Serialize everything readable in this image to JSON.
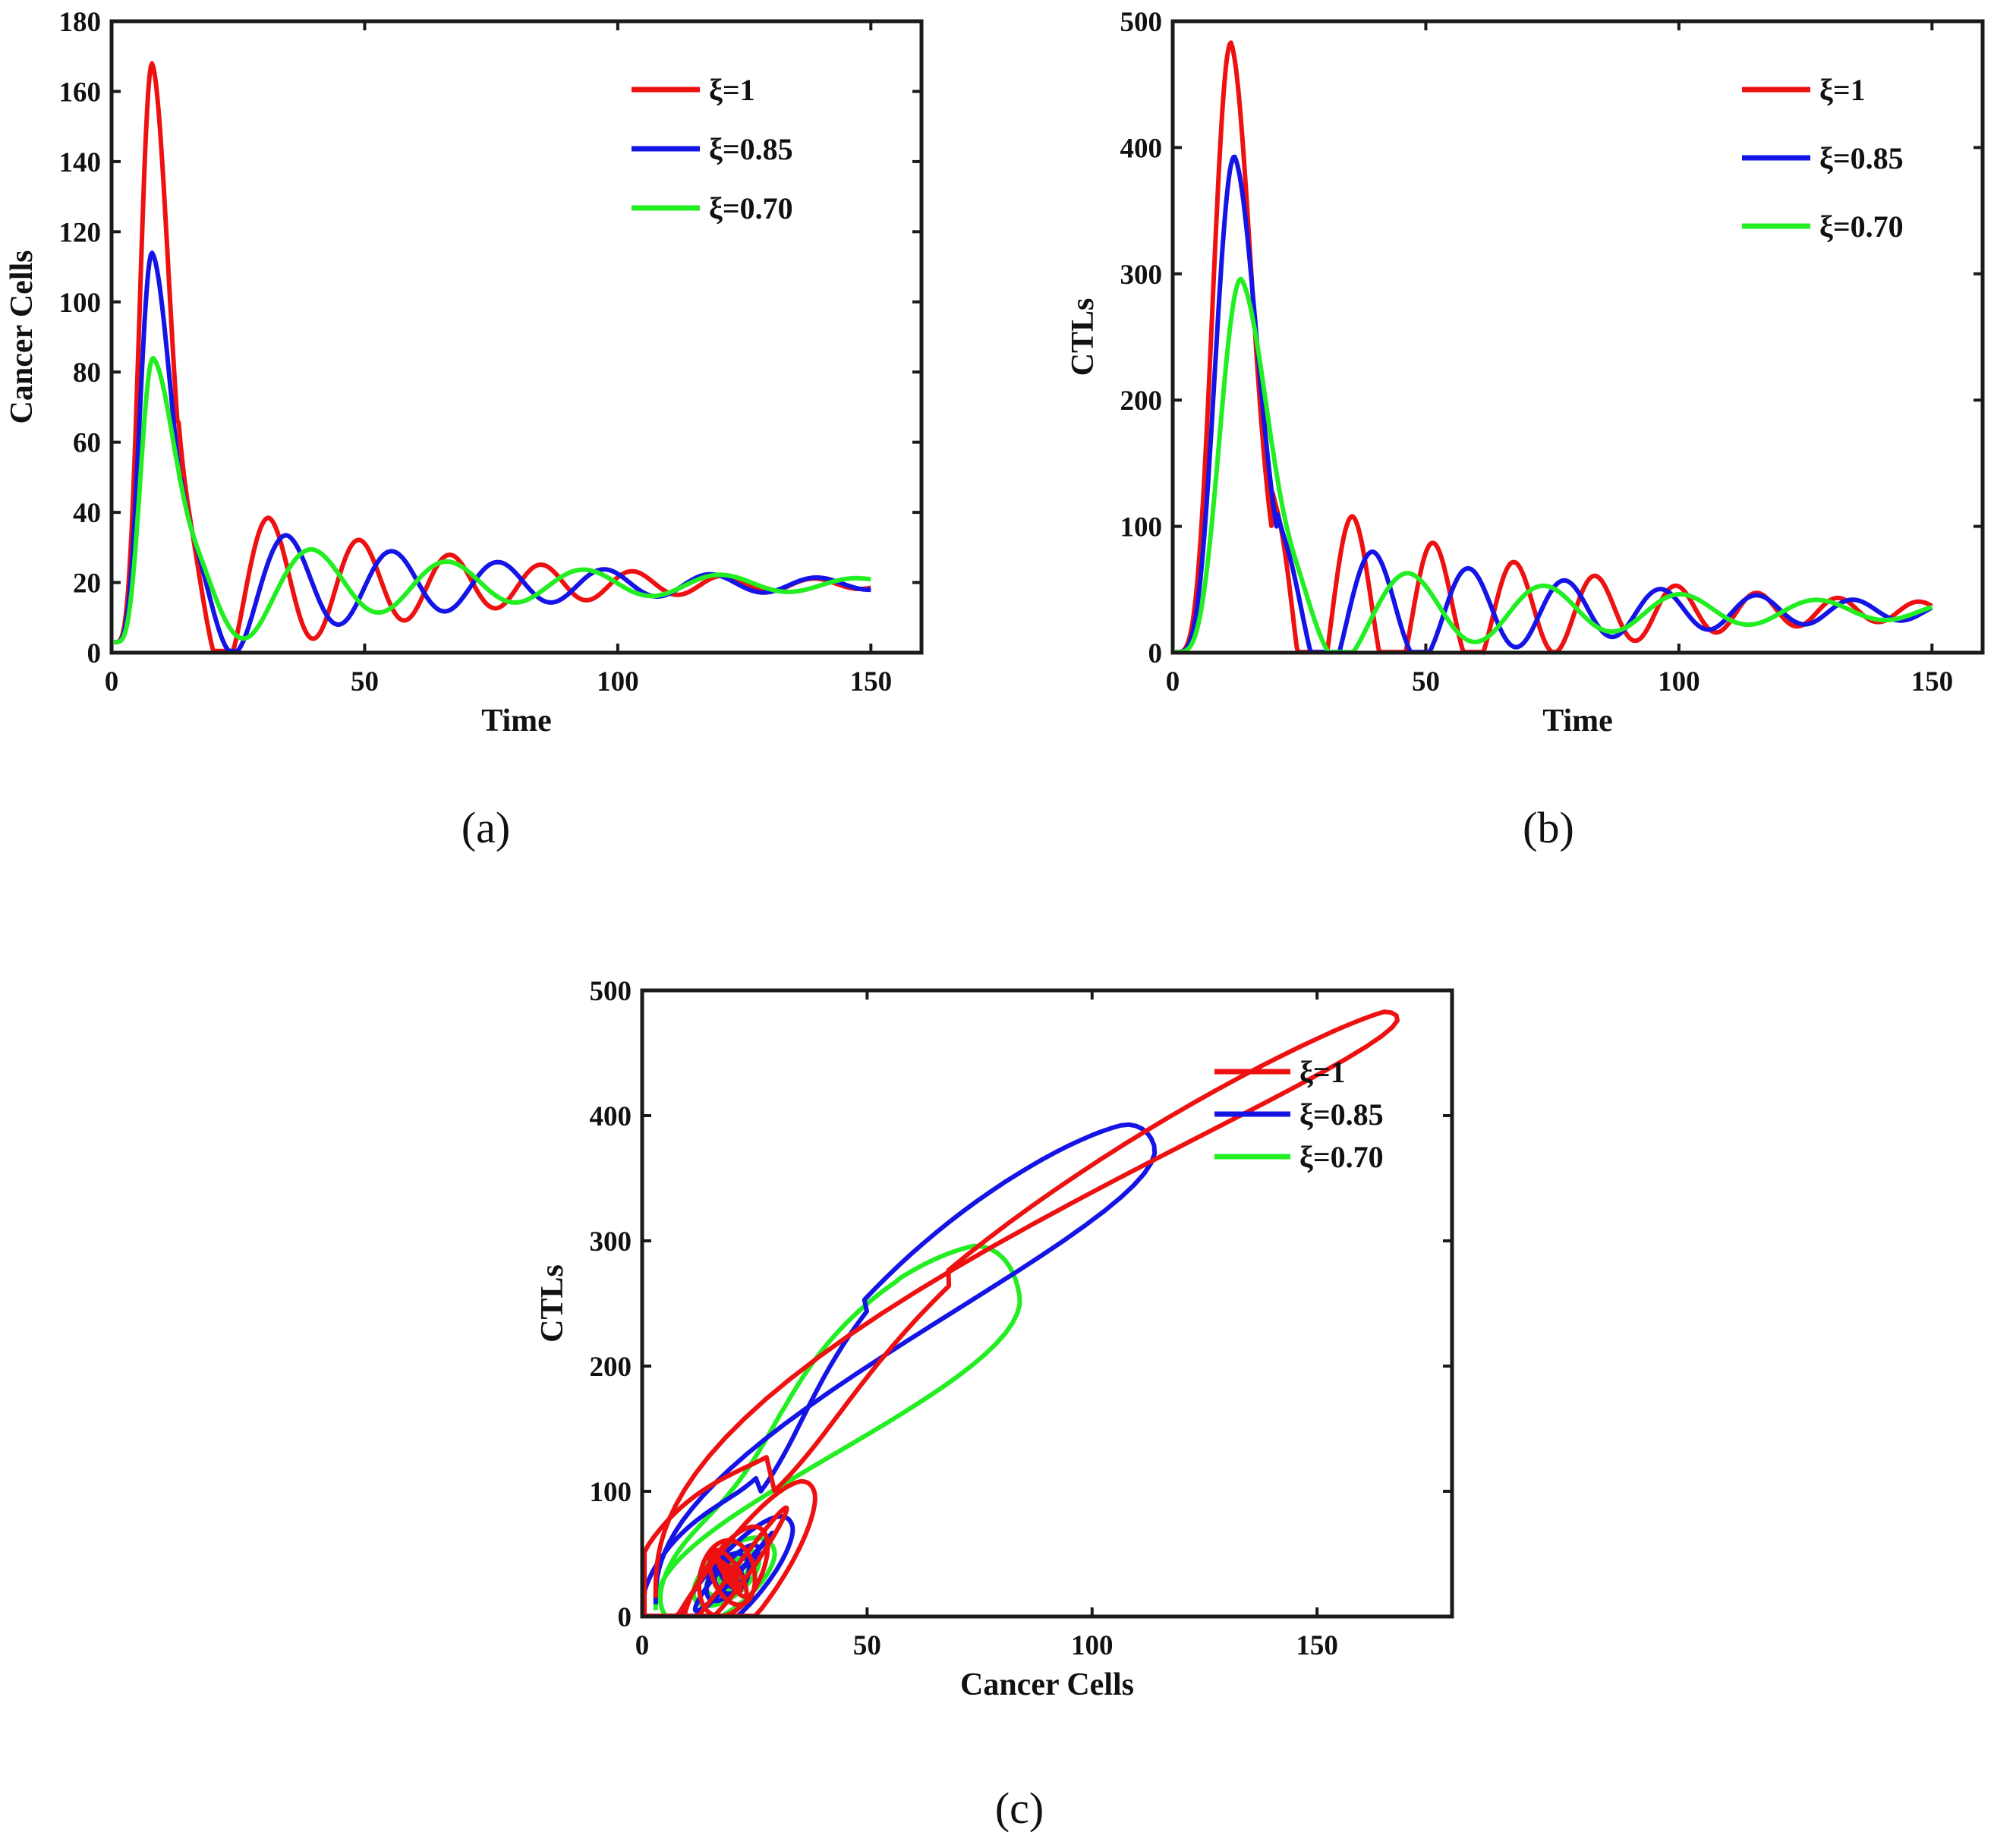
{
  "colors": {
    "xi_1": "#ee1111",
    "xi_085": "#1414e6",
    "xi_070": "#22ee22",
    "axis": "#1a1a1a"
  },
  "legend": [
    "ξ=1",
    "ξ=0.85",
    "ξ=0.70"
  ],
  "chart_data": [
    {
      "id": "a",
      "type": "line",
      "panel_label": "(a)",
      "xlabel": "Time",
      "ylabel": "Cancer Cells",
      "xlim": [
        0,
        160
      ],
      "ylim": [
        0,
        180
      ],
      "xticks": [
        0,
        50,
        100,
        150
      ],
      "yticks": [
        0,
        20,
        40,
        60,
        80,
        100,
        120,
        140,
        160,
        180
      ],
      "legend_position": "top-right",
      "series": [
        {
          "name": "ξ=1",
          "color_key": "xi_1",
          "baseline": 19.5,
          "x0": 0.5,
          "y0": 3,
          "peak_t": 8,
          "peak": 168,
          "rise": 2.2,
          "fall": 3.6,
          "t1": 31,
          "p1": 38.5,
          "tau": 20,
          "tmin1": 22,
          "dipdepth": 12,
          "dipw": 4,
          "tend": 150
        },
        {
          "name": "ξ=0.85",
          "color_key": "xi_085",
          "baseline": 19.5,
          "x0": 0.5,
          "y0": 3,
          "peak_t": 8,
          "peak": 114,
          "rise": 2.2,
          "fall": 4.0,
          "t1": 34.5,
          "p1": 33.5,
          "tau": 24,
          "tmin1": 24,
          "dipdepth": 11.5,
          "dipw": 4.5,
          "tend": 150
        },
        {
          "name": "ξ=0.70",
          "color_key": "xi_070",
          "baseline": 19.5,
          "x0": 0.5,
          "y0": 3,
          "peak_t": 8.2,
          "peak": 84,
          "rise": 2.4,
          "fall": 4.8,
          "t1": 39.5,
          "p1": 29.5,
          "tau": 28,
          "tmin1": 26,
          "dipdepth": 11,
          "dipw": 6,
          "tend": 150
        }
      ]
    },
    {
      "id": "b",
      "type": "line",
      "panel_label": "(b)",
      "xlabel": "Time",
      "ylabel": "CTLs",
      "xlim": [
        0,
        160
      ],
      "ylim": [
        0,
        500
      ],
      "xticks": [
        0,
        50,
        100,
        150
      ],
      "yticks": [
        0,
        100,
        200,
        300,
        400,
        500
      ],
      "legend_position": "top-right",
      "series": [
        {
          "name": "ξ=1",
          "color_key": "xi_1",
          "baseline": 33,
          "x0": 0.5,
          "y0": 0.5,
          "peak_t": 11.5,
          "peak": 483,
          "rise": 2.2,
          "fall": 4.5,
          "t1": 35.5,
          "p1": 108,
          "tau": 22,
          "tmin1": 27.5,
          "dipdepth": 25,
          "dipw": 3,
          "tend": 150
        },
        {
          "name": "ξ=0.85",
          "color_key": "xi_085",
          "baseline": 33,
          "x0": 0.5,
          "y0": 0.5,
          "peak_t": 12.2,
          "peak": 393,
          "rise": 2.3,
          "fall": 5.0,
          "t1": 39.5,
          "p1": 80,
          "tau": 26,
          "tmin1": 30,
          "dipdepth": 24,
          "dipw": 3.5,
          "tend": 150
        },
        {
          "name": "ξ=0.70",
          "color_key": "xi_070",
          "baseline": 33,
          "x0": 0.5,
          "y0": 0.5,
          "peak_t": 13.5,
          "peak": 296,
          "rise": 2.5,
          "fall": 6.0,
          "t1": 46.5,
          "p1": 63,
          "tau": 30,
          "tmin1": 33,
          "dipdepth": 22,
          "dipw": 5,
          "tend": 150
        }
      ]
    },
    {
      "id": "c",
      "type": "line",
      "panel_label": "(c)",
      "xlabel": "Cancer Cells",
      "ylabel": "CTLs",
      "xlim": [
        0,
        180
      ],
      "ylim": [
        0,
        500
      ],
      "xticks": [
        0,
        50,
        100,
        150
      ],
      "yticks": [
        0,
        100,
        200,
        300,
        400,
        500
      ],
      "legend_position": "top-right",
      "phase_of": [
        "a",
        "b"
      ]
    }
  ]
}
